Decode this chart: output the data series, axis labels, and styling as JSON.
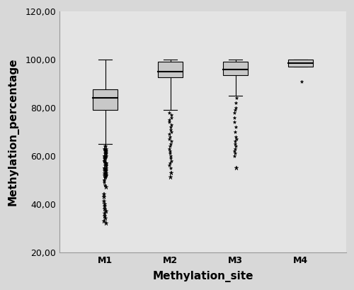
{
  "categories": [
    "M1",
    "M2",
    "M3",
    "M4"
  ],
  "boxes": [
    {
      "q1": 79.0,
      "median": 84.0,
      "q3": 87.5,
      "whisker_low": 65.0,
      "whisker_high": 100.0,
      "outliers_mild": [
        64,
        63,
        62,
        61,
        60,
        59,
        58,
        57,
        56,
        55,
        54,
        53,
        52,
        51,
        50,
        49,
        48,
        64,
        63,
        62,
        61,
        60,
        59,
        58,
        57,
        56,
        55,
        54,
        53,
        52,
        51,
        50,
        63,
        62,
        61,
        60,
        59,
        58,
        57,
        56,
        55,
        54,
        53,
        52,
        51,
        62,
        61,
        60,
        59,
        58,
        57,
        56,
        55,
        54,
        53
      ],
      "outliers_far": [
        47,
        44,
        43,
        41,
        40,
        39,
        38,
        37,
        36,
        35,
        34,
        33,
        32
      ]
    },
    {
      "q1": 92.5,
      "median": 95.0,
      "q3": 99.0,
      "whisker_low": 79.0,
      "whisker_high": 100.0,
      "outliers_mild": [
        78,
        77,
        76,
        75,
        74,
        73,
        72,
        71,
        70,
        69,
        68,
        67,
        66,
        65,
        64,
        63,
        62,
        61,
        60,
        59,
        58,
        57,
        56,
        55
      ],
      "outliers_far": [
        53,
        51
      ]
    },
    {
      "q1": 93.5,
      "median": 96.0,
      "q3": 99.0,
      "whisker_low": 85.0,
      "whisker_high": 100.0,
      "outliers_mild": [
        84,
        82,
        80,
        79,
        78,
        76,
        74,
        72,
        70,
        68,
        67,
        66,
        65,
        64,
        63,
        62,
        61,
        60
      ],
      "outliers_far": [
        55
      ]
    },
    {
      "q1": 97.0,
      "median": 98.5,
      "q3": 100.0,
      "whisker_low": 97.0,
      "whisker_high": 100.0,
      "outliers_mild": [
        91
      ],
      "outliers_far": []
    }
  ],
  "ylim": [
    20,
    120
  ],
  "yticks": [
    20,
    40,
    60,
    80,
    100,
    120
  ],
  "ytick_labels": [
    "20,00",
    "40,00",
    "60,00",
    "80,00",
    "100,00",
    "120,00"
  ],
  "xlabel": "Methylation_site",
  "ylabel": "Methylation_percentage",
  "box_color": "#c8c8c8",
  "box_edge_color": "#000000",
  "median_color": "#000000",
  "whisker_color": "#000000",
  "outlier_marker": "*",
  "outlier_color": "#000000",
  "figure_bg_color": "#d8d8d8",
  "plot_bg_color": "#e4e4e4",
  "box_width": 0.38,
  "cap_ratio": 0.55
}
